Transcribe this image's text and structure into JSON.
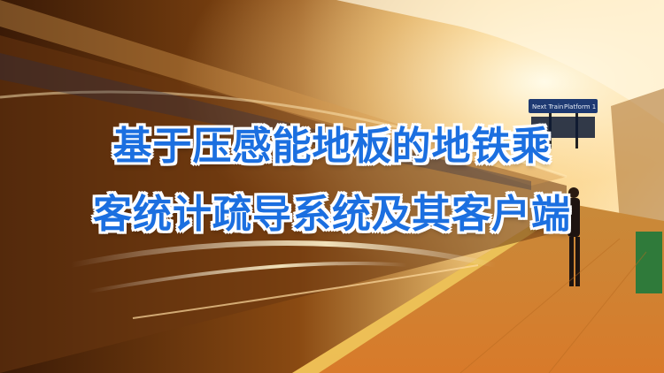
{
  "headline": {
    "line1": "基于压感能地板的地铁乘",
    "line2": "客统计疏导系统及其客户端"
  },
  "sign": {
    "left": "Next Train",
    "right": "Platform 1"
  },
  "colors": {
    "headline_fill": "#1b6fe0",
    "headline_outline": "#ffffff",
    "accent_glow": "#ffd890"
  }
}
